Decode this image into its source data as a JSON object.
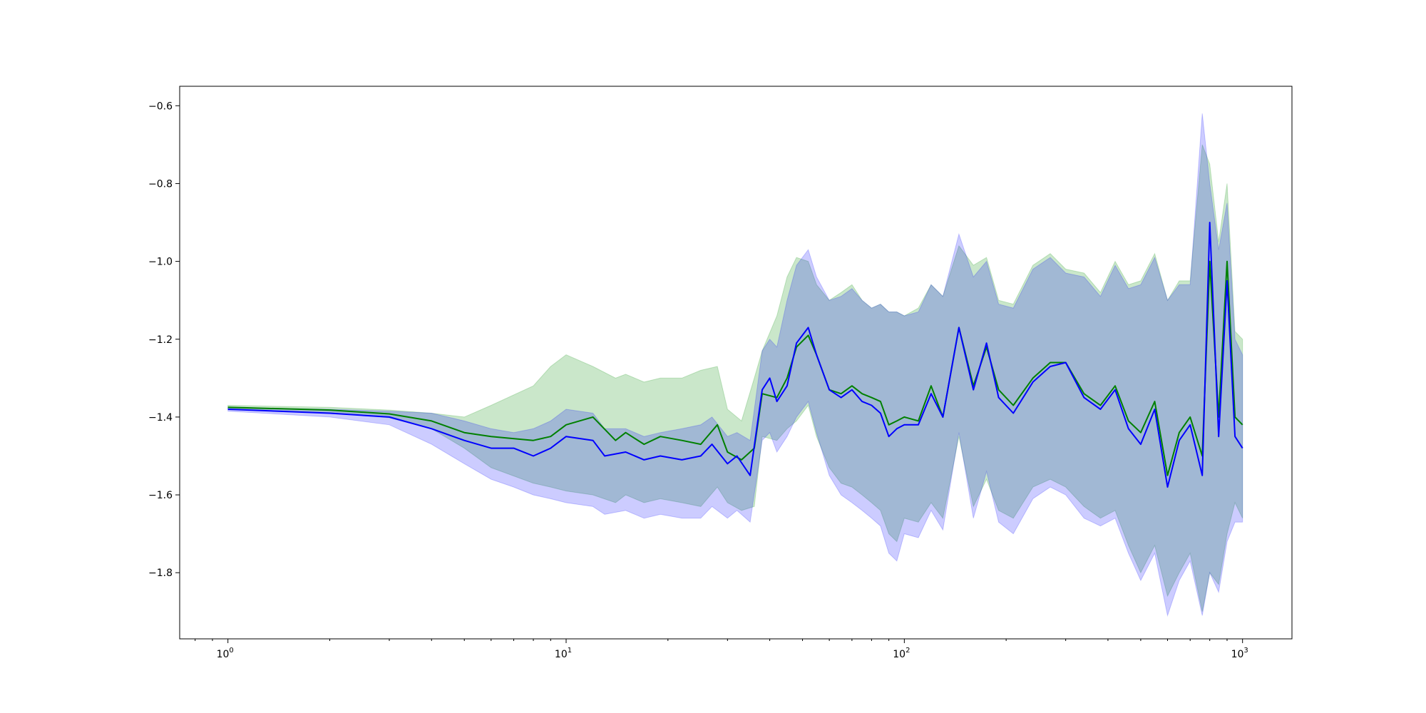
{
  "chart_data": {
    "type": "line",
    "title": "",
    "xlabel": "",
    "ylabel": "",
    "xscale": "log",
    "xlim": [
      0.72,
      1400
    ],
    "ylim": [
      -1.97,
      -0.55
    ],
    "grid": false,
    "legend": "none",
    "yticks": [
      -1.8,
      -1.6,
      -1.4,
      -1.2,
      -1.0,
      -0.8,
      -0.6
    ],
    "ytick_labels": [
      "−1.8",
      "−1.6",
      "−1.4",
      "−1.2",
      "−1.0",
      "−0.8",
      "−0.6"
    ],
    "xticks": [
      1,
      10,
      100,
      1000
    ],
    "xtick_labels": [
      {
        "base": "10",
        "exp": "0"
      },
      {
        "base": "10",
        "exp": "1"
      },
      {
        "base": "10",
        "exp": "2"
      },
      {
        "base": "10",
        "exp": "3"
      }
    ],
    "series": [
      {
        "color": "#008000",
        "band_color": "#2ca02c",
        "band_opacity": 0.25,
        "x": [
          1,
          2,
          3,
          4,
          5,
          6,
          8,
          9,
          10,
          12,
          14,
          15,
          17,
          19,
          22,
          25,
          28,
          30,
          33,
          36,
          38,
          42,
          45,
          48,
          52,
          55,
          60,
          65,
          70,
          75,
          80,
          85,
          90,
          95,
          100,
          110,
          120,
          130,
          145,
          160,
          175,
          190,
          210,
          240,
          270,
          300,
          340,
          380,
          420,
          460,
          500,
          550,
          600,
          650,
          700,
          760,
          800,
          850,
          900,
          950,
          1000
        ],
        "y": [
          -1.375,
          -1.382,
          -1.392,
          -1.41,
          -1.44,
          -1.45,
          -1.46,
          -1.45,
          -1.42,
          -1.4,
          -1.46,
          -1.44,
          -1.47,
          -1.45,
          -1.46,
          -1.47,
          -1.42,
          -1.49,
          -1.51,
          -1.48,
          -1.34,
          -1.35,
          -1.3,
          -1.22,
          -1.19,
          -1.24,
          -1.33,
          -1.34,
          -1.32,
          -1.34,
          -1.35,
          -1.36,
          -1.42,
          -1.41,
          -1.4,
          -1.41,
          -1.32,
          -1.4,
          -1.17,
          -1.32,
          -1.22,
          -1.33,
          -1.37,
          -1.3,
          -1.26,
          -1.26,
          -1.34,
          -1.37,
          -1.32,
          -1.41,
          -1.44,
          -1.36,
          -1.55,
          -1.44,
          -1.4,
          -1.5,
          -1.0,
          -1.4,
          -1.0,
          -1.4,
          -1.42
        ],
        "upper": [
          -1.37,
          -1.375,
          -1.382,
          -1.39,
          -1.4,
          -1.37,
          -1.32,
          -1.27,
          -1.24,
          -1.27,
          -1.3,
          -1.29,
          -1.31,
          -1.3,
          -1.3,
          -1.28,
          -1.27,
          -1.38,
          -1.41,
          -1.3,
          -1.23,
          -1.14,
          -1.04,
          -0.99,
          -1.0,
          -1.06,
          -1.1,
          -1.08,
          -1.06,
          -1.1,
          -1.12,
          -1.11,
          -1.13,
          -1.13,
          -1.14,
          -1.12,
          -1.06,
          -1.09,
          -0.96,
          -1.01,
          -0.99,
          -1.1,
          -1.11,
          -1.01,
          -0.98,
          -1.02,
          -1.03,
          -1.08,
          -1.0,
          -1.06,
          -1.05,
          -0.98,
          -1.1,
          -1.05,
          -1.05,
          -0.7,
          -0.75,
          -0.95,
          -0.8,
          -1.18,
          -1.2
        ],
        "lower": [
          -1.38,
          -1.389,
          -1.402,
          -1.43,
          -1.48,
          -1.53,
          -1.57,
          -1.58,
          -1.59,
          -1.6,
          -1.62,
          -1.6,
          -1.62,
          -1.61,
          -1.62,
          -1.63,
          -1.58,
          -1.62,
          -1.64,
          -1.63,
          -1.45,
          -1.46,
          -1.43,
          -1.41,
          -1.37,
          -1.45,
          -1.53,
          -1.57,
          -1.58,
          -1.6,
          -1.62,
          -1.64,
          -1.7,
          -1.72,
          -1.66,
          -1.67,
          -1.62,
          -1.66,
          -1.45,
          -1.63,
          -1.56,
          -1.64,
          -1.66,
          -1.58,
          -1.56,
          -1.58,
          -1.63,
          -1.66,
          -1.64,
          -1.73,
          -1.8,
          -1.73,
          -1.86,
          -1.8,
          -1.75,
          -1.9,
          -1.8,
          -1.83,
          -1.7,
          -1.62,
          -1.66
        ]
      },
      {
        "color": "#0000ff",
        "band_color": "#0000ff",
        "band_opacity": 0.2,
        "x": [
          1,
          2,
          3,
          4,
          5,
          6,
          7,
          8,
          9,
          10,
          12,
          13,
          15,
          17,
          19,
          22,
          25,
          27,
          30,
          32,
          35,
          38,
          40,
          42,
          45,
          48,
          52,
          55,
          60,
          65,
          70,
          75,
          80,
          85,
          90,
          95,
          100,
          110,
          120,
          130,
          145,
          160,
          175,
          190,
          210,
          240,
          270,
          300,
          340,
          380,
          420,
          460,
          500,
          550,
          600,
          650,
          700,
          760,
          800,
          850,
          900,
          950,
          1000
        ],
        "y": [
          -1.38,
          -1.39,
          -1.4,
          -1.43,
          -1.46,
          -1.48,
          -1.48,
          -1.5,
          -1.48,
          -1.45,
          -1.46,
          -1.5,
          -1.49,
          -1.51,
          -1.5,
          -1.51,
          -1.5,
          -1.47,
          -1.52,
          -1.5,
          -1.55,
          -1.33,
          -1.3,
          -1.36,
          -1.32,
          -1.21,
          -1.17,
          -1.24,
          -1.33,
          -1.35,
          -1.33,
          -1.36,
          -1.37,
          -1.39,
          -1.45,
          -1.43,
          -1.42,
          -1.42,
          -1.34,
          -1.4,
          -1.17,
          -1.33,
          -1.21,
          -1.35,
          -1.39,
          -1.31,
          -1.27,
          -1.26,
          -1.35,
          -1.38,
          -1.33,
          -1.43,
          -1.47,
          -1.38,
          -1.58,
          -1.46,
          -1.42,
          -1.55,
          -0.9,
          -1.45,
          -1.05,
          -1.45,
          -1.48
        ],
        "upper": [
          -1.375,
          -1.38,
          -1.385,
          -1.39,
          -1.41,
          -1.43,
          -1.44,
          -1.43,
          -1.41,
          -1.38,
          -1.39,
          -1.43,
          -1.43,
          -1.45,
          -1.44,
          -1.43,
          -1.42,
          -1.4,
          -1.45,
          -1.44,
          -1.46,
          -1.23,
          -1.2,
          -1.22,
          -1.1,
          -1.01,
          -0.97,
          -1.04,
          -1.1,
          -1.09,
          -1.07,
          -1.1,
          -1.12,
          -1.11,
          -1.13,
          -1.13,
          -1.14,
          -1.13,
          -1.06,
          -1.09,
          -0.93,
          -1.04,
          -1.0,
          -1.11,
          -1.12,
          -1.02,
          -0.99,
          -1.03,
          -1.04,
          -1.09,
          -1.01,
          -1.07,
          -1.06,
          -0.99,
          -1.1,
          -1.06,
          -1.06,
          -0.62,
          -0.8,
          -0.97,
          -0.85,
          -1.2,
          -1.24
        ],
        "lower": [
          -1.385,
          -1.4,
          -1.42,
          -1.47,
          -1.52,
          -1.56,
          -1.58,
          -1.6,
          -1.61,
          -1.62,
          -1.63,
          -1.65,
          -1.64,
          -1.66,
          -1.65,
          -1.66,
          -1.66,
          -1.63,
          -1.66,
          -1.64,
          -1.67,
          -1.46,
          -1.44,
          -1.49,
          -1.45,
          -1.4,
          -1.36,
          -1.44,
          -1.55,
          -1.6,
          -1.62,
          -1.64,
          -1.66,
          -1.68,
          -1.75,
          -1.77,
          -1.7,
          -1.71,
          -1.64,
          -1.69,
          -1.44,
          -1.66,
          -1.54,
          -1.67,
          -1.7,
          -1.61,
          -1.58,
          -1.6,
          -1.66,
          -1.68,
          -1.66,
          -1.75,
          -1.82,
          -1.75,
          -1.91,
          -1.82,
          -1.77,
          -1.91,
          -1.8,
          -1.85,
          -1.72,
          -1.67,
          -1.67
        ]
      }
    ]
  }
}
